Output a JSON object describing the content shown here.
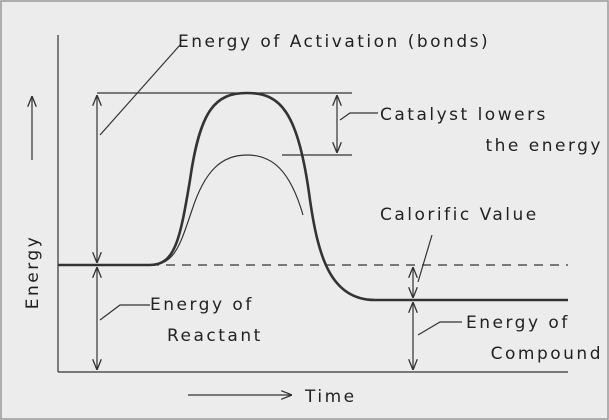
{
  "labels": {
    "activation": "Energy of Activation (bonds)",
    "catalyst_line1": "Catalyst lowers",
    "catalyst_line2": "the energy",
    "calorific": "Calorific Value",
    "reactant_line1": "Energy of",
    "reactant_line2": "Reactant",
    "compound_line1": "Energy of",
    "compound_line2": "Compound",
    "y_axis": "Energy",
    "x_axis": "Time"
  }
}
